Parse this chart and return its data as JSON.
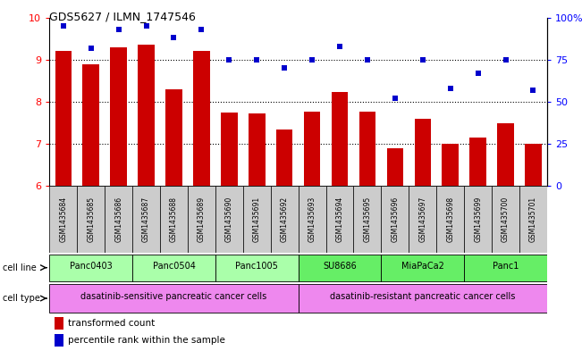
{
  "title": "GDS5627 / ILMN_1747546",
  "samples": [
    "GSM1435684",
    "GSM1435685",
    "GSM1435686",
    "GSM1435687",
    "GSM1435688",
    "GSM1435689",
    "GSM1435690",
    "GSM1435691",
    "GSM1435692",
    "GSM1435693",
    "GSM1435694",
    "GSM1435695",
    "GSM1435696",
    "GSM1435697",
    "GSM1435698",
    "GSM1435699",
    "GSM1435700",
    "GSM1435701"
  ],
  "bar_values": [
    9.2,
    8.9,
    9.3,
    9.35,
    8.3,
    9.2,
    7.75,
    7.73,
    7.35,
    7.77,
    8.23,
    7.76,
    6.9,
    7.6,
    7.0,
    7.15,
    7.5,
    7.0
  ],
  "dot_values": [
    95,
    82,
    93,
    95,
    88,
    93,
    75,
    75,
    70,
    75,
    83,
    75,
    52,
    75,
    58,
    67,
    75,
    57
  ],
  "ylim_left": [
    6,
    10
  ],
  "ylim_right": [
    0,
    100
  ],
  "yticks_left": [
    6,
    7,
    8,
    9,
    10
  ],
  "yticks_right": [
    0,
    25,
    50,
    75,
    100
  ],
  "bar_color": "#cc0000",
  "dot_color": "#0000cc",
  "cell_lines": [
    {
      "label": "Panc0403",
      "start": 0,
      "end": 2,
      "color": "#aaffaa"
    },
    {
      "label": "Panc0504",
      "start": 3,
      "end": 5,
      "color": "#aaffaa"
    },
    {
      "label": "Panc1005",
      "start": 6,
      "end": 8,
      "color": "#aaffaa"
    },
    {
      "label": "SU8686",
      "start": 9,
      "end": 11,
      "color": "#66ee66"
    },
    {
      "label": "MiaPaCa2",
      "start": 12,
      "end": 14,
      "color": "#66ee66"
    },
    {
      "label": "Panc1",
      "start": 15,
      "end": 17,
      "color": "#66ee66"
    }
  ],
  "cell_types": [
    {
      "label": "dasatinib-sensitive pancreatic cancer cells",
      "start": 0,
      "end": 8,
      "color": "#ee88ee"
    },
    {
      "label": "dasatinib-resistant pancreatic cancer cells",
      "start": 9,
      "end": 17,
      "color": "#ee88ee"
    }
  ],
  "legend_bar_label": "transformed count",
  "legend_dot_label": "percentile rank within the sample",
  "cell_line_label": "cell line",
  "cell_type_label": "cell type",
  "sample_box_color": "#cccccc",
  "bar_bottom": 6,
  "gridline_y": [
    7,
    8,
    9
  ],
  "fig_width": 6.51,
  "fig_height": 3.93,
  "dpi": 100
}
